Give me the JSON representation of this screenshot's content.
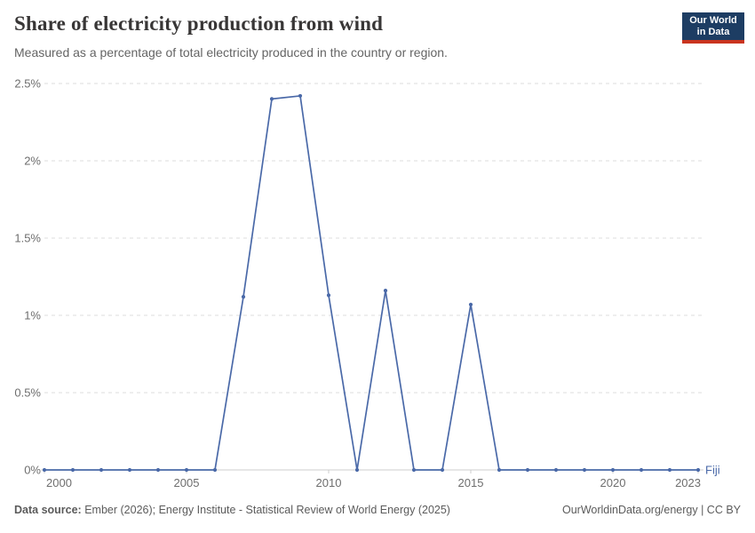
{
  "header": {
    "title": "Share of electricity production from wind",
    "subtitle": "Measured as a percentage of total electricity produced in the country or region.",
    "logo": {
      "line1": "Our World",
      "line2": "in Data"
    }
  },
  "chart_data": {
    "type": "line",
    "title": "Share of electricity production from wind",
    "xlabel": "",
    "ylabel": "",
    "xlim": [
      2000,
      2023
    ],
    "ylim": [
      0,
      2.5
    ],
    "grid": "horizontal dashed",
    "legend_position": "end-of-line label",
    "x_ticks": [
      2000,
      2005,
      2010,
      2015,
      2020,
      2023
    ],
    "y_ticks": [
      0,
      0.5,
      1,
      1.5,
      2,
      2.5
    ],
    "y_tick_labels": [
      "0%",
      "0.5%",
      "1%",
      "1.5%",
      "2%",
      "2.5%"
    ],
    "series": [
      {
        "name": "Fiji",
        "color": "#4a69a8",
        "x": [
          2000,
          2001,
          2002,
          2003,
          2004,
          2005,
          2006,
          2007,
          2008,
          2009,
          2010,
          2011,
          2012,
          2013,
          2014,
          2015,
          2016,
          2017,
          2018,
          2019,
          2020,
          2021,
          2022,
          2023
        ],
        "values": [
          0,
          0,
          0,
          0,
          0,
          0,
          0,
          1.12,
          2.4,
          2.42,
          1.13,
          0,
          1.16,
          0,
          0,
          1.07,
          0,
          0,
          0,
          0,
          0,
          0,
          0,
          0
        ]
      }
    ]
  },
  "footer": {
    "datasource_label": "Data source:",
    "datasource_text": " Ember (2026); Energy Institute - Statistical Review of World Energy (2025)",
    "credit": "OurWorldinData.org/energy | CC BY"
  },
  "colors": {
    "line": "#4a69a8",
    "title_text": "#383636",
    "subtitle_text": "#646464",
    "axis_text": "#6e6e6e",
    "grid": "#dedede",
    "axis_line": "#cccccc",
    "footer_text": "#5b5b5b",
    "logo_bg": "#1d3d63",
    "logo_red": "#c9341f"
  }
}
